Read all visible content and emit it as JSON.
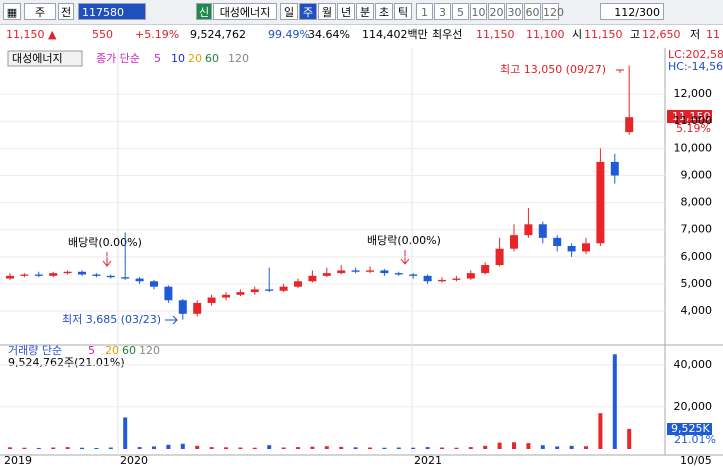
{
  "toolbar": {
    "market": "주",
    "mode": "전",
    "code": "117580",
    "badge": "신",
    "name": "대성에너지",
    "tabs": [
      "일",
      "주",
      "월",
      "년",
      "분",
      "초",
      "틱"
    ],
    "periods": [
      "1",
      "3",
      "5",
      "10",
      "20",
      "30",
      "60",
      "120"
    ],
    "count": "112/300"
  },
  "quote": [
    {
      "text": "11,150 ▲",
      "color": "#e0202a"
    },
    {
      "text": "550",
      "color": "#e0202a"
    },
    {
      "text": "+5.19%",
      "color": "#e0202a"
    },
    {
      "text": "9,524,762",
      "color": "#000"
    },
    {
      "text": "99.49%",
      "color": "#1f4fc8"
    },
    {
      "text": "34.64%",
      "color": "#000"
    },
    {
      "text": "114,402백만",
      "color": "#000"
    },
    {
      "text": "최우선",
      "color": "#000"
    },
    {
      "text": "11,150",
      "color": "#e0202a"
    },
    {
      "text": "11,100",
      "color": "#e0202a"
    },
    {
      "text": "시",
      "color": "#000"
    },
    {
      "text": "11,150",
      "color": "#e0202a"
    },
    {
      "text": "고",
      "color": "#000"
    },
    {
      "text": "12,650",
      "color": "#e0202a"
    },
    {
      "text": "저",
      "color": "#000"
    },
    {
      "text": "11",
      "color": "#e0202a"
    }
  ],
  "price_chart": {
    "type": "candlestick",
    "title": "대성에너지",
    "legend_name": "종가 단순",
    "legend": [
      {
        "period": 5,
        "color": "#d020c0"
      },
      {
        "period": 10,
        "color": "#1030d0"
      },
      {
        "period": 20,
        "color": "#e8a000"
      },
      {
        "period": 60,
        "color": "#208040"
      },
      {
        "period": 120,
        "color": "#888888"
      }
    ],
    "up_color": "#e8262a",
    "down_color": "#1f5bd6",
    "open": [
      5200,
      5300,
      5350,
      5300,
      5400,
      5450,
      5350,
      5300,
      5250,
      5200,
      5100,
      4900,
      4400,
      3900,
      4300,
      4500,
      4600,
      4700,
      4800,
      4750,
      4900,
      5100,
      5300,
      5400,
      5500,
      5450,
      5500,
      5400,
      5350,
      5300,
      5100,
      5150,
      5200,
      5400,
      5700,
      6300,
      6800,
      7200,
      6700,
      6400,
      6200,
      6500,
      9500,
      10600
    ],
    "close": [
      5300,
      5350,
      5300,
      5400,
      5450,
      5350,
      5300,
      5250,
      5200,
      5100,
      4900,
      4400,
      3900,
      4300,
      4500,
      4600,
      4700,
      4800,
      4750,
      4900,
      5100,
      5300,
      5400,
      5500,
      5450,
      5500,
      5400,
      5350,
      5300,
      5100,
      5150,
      5200,
      5400,
      5700,
      6300,
      6800,
      7200,
      6700,
      6400,
      6200,
      6500,
      9500,
      9000,
      11150
    ],
    "high": [
      5400,
      5400,
      5450,
      5450,
      5500,
      5500,
      5400,
      5350,
      6900,
      5250,
      5150,
      4950,
      4450,
      4400,
      4600,
      4700,
      4800,
      4900,
      5600,
      5000,
      5200,
      5500,
      5600,
      5700,
      5600,
      5650,
      5550,
      5450,
      5400,
      5350,
      5250,
      5300,
      5500,
      5800,
      6700,
      7200,
      7800,
      7300,
      6800,
      6500,
      6700,
      10000,
      9800,
      13050
    ],
    "low": [
      5150,
      5250,
      5250,
      5250,
      5350,
      5300,
      5250,
      5200,
      5150,
      5000,
      4800,
      4300,
      3685,
      3800,
      4200,
      4400,
      4550,
      4600,
      4700,
      4700,
      4850,
      5050,
      5250,
      5350,
      5400,
      5400,
      5300,
      5300,
      5200,
      5000,
      5050,
      5100,
      5150,
      5350,
      5650,
      6200,
      6700,
      6500,
      6200,
      6000,
      6100,
      6400,
      8700,
      10500
    ],
    "ylim": [
      2750,
      13700
    ],
    "yticks": [
      {
        "value": 4000,
        "label": "4,000"
      },
      {
        "value": 5000,
        "label": "5,000"
      },
      {
        "value": 6000,
        "label": "6,000"
      },
      {
        "value": 7000,
        "label": "7,000"
      },
      {
        "value": 8000,
        "label": "8,000"
      },
      {
        "value": 9000,
        "label": "9,000"
      },
      {
        "value": 10000,
        "label": "10,000"
      },
      {
        "value": 11000,
        "label": "11,000"
      },
      {
        "value": 12000,
        "label": "12,000"
      }
    ],
    "annotations": [
      "배당락(0.00%)",
      "배당락(0.00%)",
      "최고 13,050 (09/27)",
      "최저 3,685 (03/23)"
    ],
    "right_labels": [
      "LC:202,58",
      "HC:-14,56"
    ],
    "last_price": "11,150",
    "last_change": "5.19%"
  },
  "volume_chart": {
    "type": "bar",
    "legend_name": "거래량 단순",
    "legend": [
      {
        "period": 5,
        "color": "#d020c0"
      },
      {
        "period": 20,
        "color": "#e8a000"
      },
      {
        "period": 60,
        "color": "#208040"
      },
      {
        "period": 120,
        "color": "#888888"
      }
    ],
    "info": "9,524,762주(21.01%)",
    "values": [
      800,
      600,
      500,
      700,
      900,
      600,
      500,
      700,
      15000,
      900,
      1200,
      2000,
      2500,
      1500,
      900,
      800,
      700,
      600,
      1800,
      700,
      900,
      1100,
      1300,
      1000,
      800,
      700,
      600,
      700,
      600,
      900,
      700,
      600,
      900,
      1500,
      3000,
      3200,
      2800,
      1800,
      1200,
      1500,
      1300,
      17000,
      45000,
      9525
    ],
    "ylim": [
      0,
      48000
    ],
    "yticks": [
      {
        "value": 20000,
        "label": "20,000"
      },
      {
        "value": 40000,
        "label": "40,000"
      }
    ],
    "last_volume": "9,525K",
    "last_ratio": "21.01%"
  },
  "x_labels": [
    "2019",
    "2020",
    "2021",
    "10/05"
  ]
}
